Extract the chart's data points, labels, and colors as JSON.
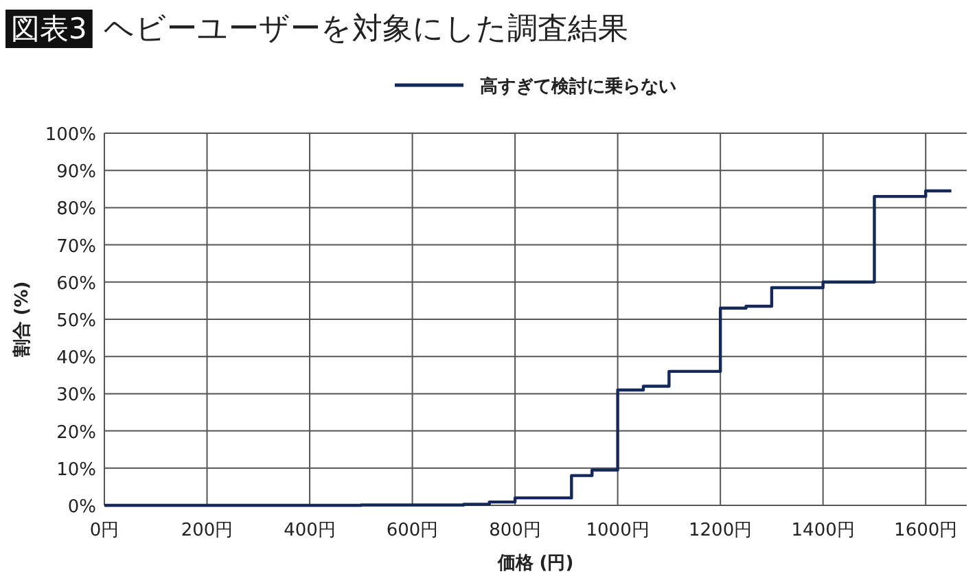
{
  "chart_data": {
    "type": "step",
    "title": "図表3",
    "subtitle": "ヘビーユーザーを対象にした調査結果",
    "xlabel": "価格 (円)",
    "ylabel": "割合 (%)",
    "legend": "top",
    "grid": true,
    "x": [
      0,
      500,
      700,
      750,
      800,
      910,
      950,
      1000,
      1050,
      1100,
      1200,
      1250,
      1300,
      1400,
      1500,
      1600,
      1650
    ],
    "series": [
      {
        "name": "高すぎて検討に乗らない",
        "color": "#14285a",
        "values": [
          0,
          0.1,
          0.3,
          0.9,
          2,
          8,
          9.5,
          31,
          32,
          36,
          53,
          53.5,
          58.5,
          60,
          83,
          84.5,
          84.5
        ]
      }
    ],
    "xlim": [
      0,
      1680
    ],
    "xticks": [
      {
        "value": 0,
        "label": "0円"
      },
      {
        "value": 200,
        "label": "200円"
      },
      {
        "value": 400,
        "label": "400円"
      },
      {
        "value": 600,
        "label": "600円"
      },
      {
        "value": 800,
        "label": "800円"
      },
      {
        "value": 1000,
        "label": "1000円"
      },
      {
        "value": 1200,
        "label": "1200円"
      },
      {
        "value": 1400,
        "label": "1400円"
      },
      {
        "value": 1600,
        "label": "1600円"
      }
    ],
    "ylim": [
      0,
      100
    ],
    "yticks": [
      {
        "value": 0,
        "label": "0%"
      },
      {
        "value": 10,
        "label": "10%"
      },
      {
        "value": 20,
        "label": "20%"
      },
      {
        "value": 30,
        "label": "30%"
      },
      {
        "value": 40,
        "label": "40%"
      },
      {
        "value": 50,
        "label": "50%"
      },
      {
        "value": 60,
        "label": "60%"
      },
      {
        "value": 70,
        "label": "70%"
      },
      {
        "value": 80,
        "label": "80%"
      },
      {
        "value": 90,
        "label": "90%"
      },
      {
        "value": 100,
        "label": "100%"
      }
    ],
    "marker": "none",
    "line_style": "solid"
  }
}
